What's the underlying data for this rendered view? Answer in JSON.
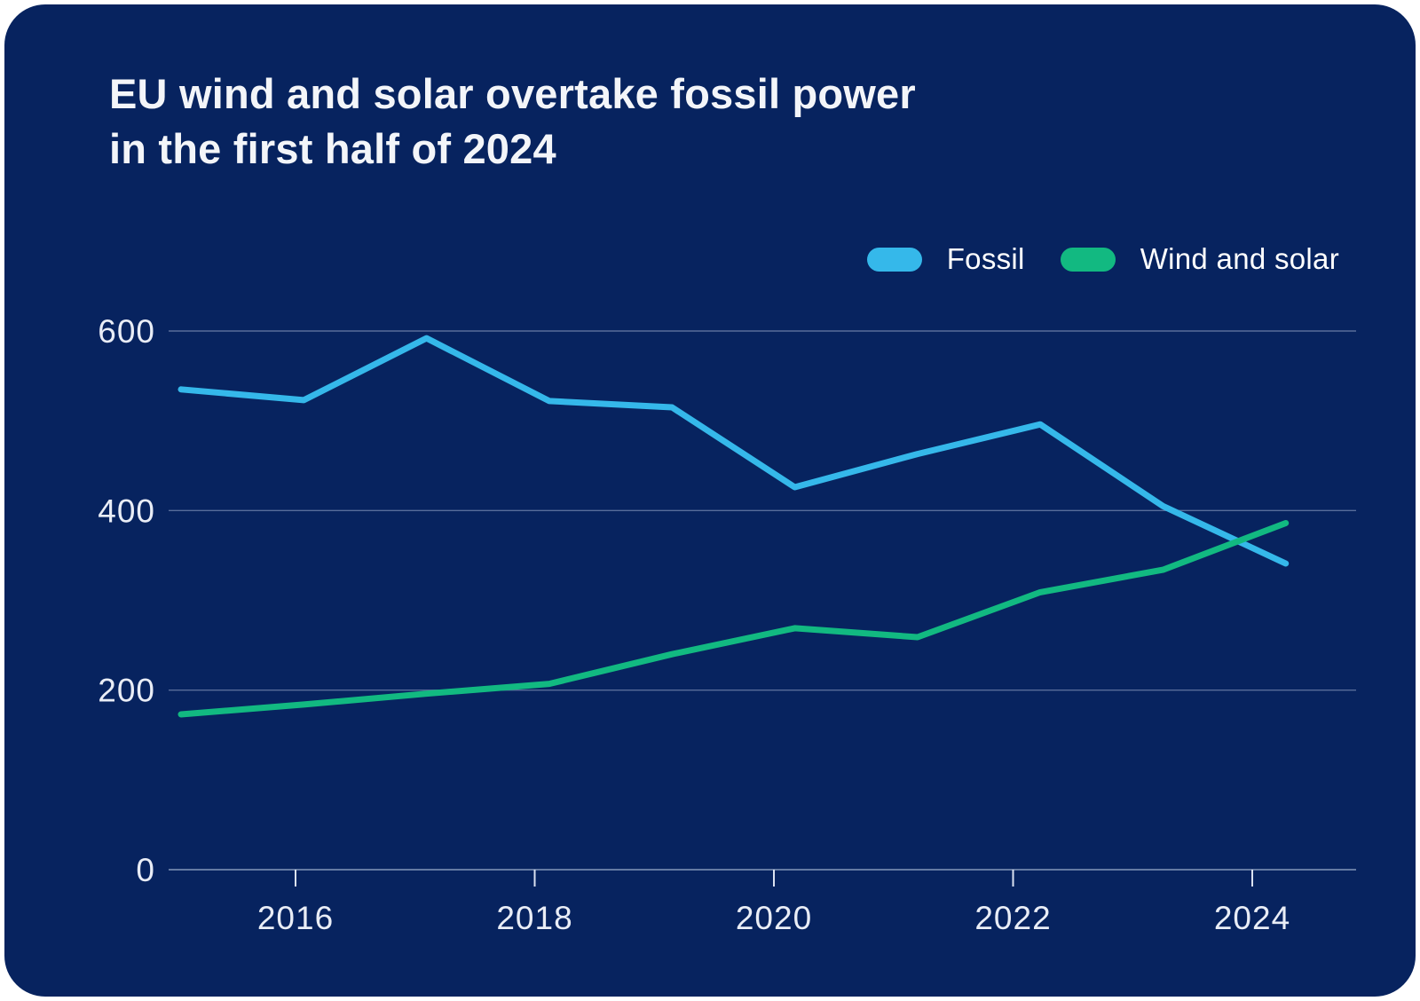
{
  "header": {
    "title": "EU wind and solar overtake fossil power in the first half of 2024",
    "title_lines": [
      "EU wind and solar overtake fossil power",
      "in the first half of 2024"
    ]
  },
  "colors": {
    "card_background": "#07235f",
    "title_text": "#f3f5f9",
    "axis_text": "#e9edf6",
    "gridline": "#68799f",
    "fossil": "#35b8ea",
    "wind_and_solar": "#12b981"
  },
  "legend": {
    "position": "top-right",
    "items": [
      {
        "label": "Fossil",
        "color": "#35b8ea"
      },
      {
        "label": "Wind and solar",
        "color": "#12b981"
      }
    ]
  },
  "chart_data": {
    "type": "line",
    "title": "EU wind and solar overtake fossil power in the first half of 2024",
    "xlabel": "",
    "ylabel": "",
    "x": [
      2015,
      2016,
      2017,
      2018,
      2019,
      2020,
      2021,
      2022,
      2023,
      2024
    ],
    "series": [
      {
        "name": "Fossil",
        "color": "#35b8ea",
        "values": [
          535,
          523,
          592,
          522,
          515,
          426,
          463,
          496,
          405,
          341
        ]
      },
      {
        "name": "Wind and solar",
        "color": "#12b981",
        "values": [
          173,
          184,
          196,
          207,
          240,
          269,
          259,
          309,
          334,
          386
        ]
      }
    ],
    "x_tick_labels": [
      "2016",
      "2018",
      "2020",
      "2022",
      "2024"
    ],
    "x_tick_values": [
      2016,
      2018,
      2020,
      2022,
      2024
    ],
    "y_tick_labels": [
      "0",
      "200",
      "400",
      "600"
    ],
    "y_tick_values": [
      0,
      200,
      400,
      600
    ],
    "ylim": [
      0,
      620
    ],
    "grid": true,
    "legend_position": "top-right"
  }
}
